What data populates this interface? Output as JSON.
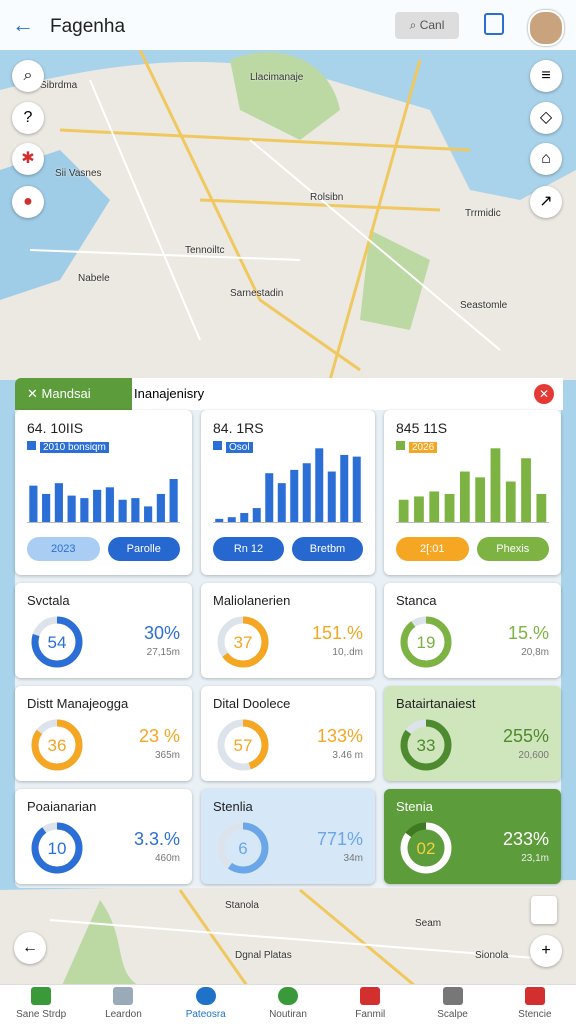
{
  "header": {
    "title": "Fagenha",
    "search": "Canl"
  },
  "map_labels": [
    "Llacimanaje",
    "Sibrdma",
    "Sii Vasnes",
    "Rolsibn",
    "Trrmidic",
    "Tennoiltc",
    "Nabele",
    "Sarnestadin",
    "Seastomle",
    "Stanola",
    "Seam",
    "Dgnal Platas",
    "Sionola"
  ],
  "tabs": [
    "Mandsai",
    "Inanajenisry"
  ],
  "bar_cards": [
    {
      "title": "64. 10IIS",
      "legend": "2010 bonsiqm",
      "color": "#2b6fd6",
      "values": [
        45,
        35,
        48,
        33,
        30,
        40,
        43,
        28,
        30,
        20,
        35,
        53
      ],
      "buttons": [
        "2023",
        "Parolle"
      ],
      "button_colors": [
        "#a9cdf3",
        "#2667d0"
      ]
    },
    {
      "title": "84. 1RS",
      "legend": "Osol",
      "color": "#2b6fd6",
      "values": [
        5,
        7,
        12,
        18,
        60,
        48,
        64,
        72,
        90,
        62,
        82,
        80
      ],
      "buttons": [
        "Rn 12",
        "Bretbm"
      ],
      "button_colors": [
        "#2667d0",
        "#2667d0"
      ]
    },
    {
      "title": "845 11S",
      "legend": "2026",
      "color": "#7cb342",
      "values": [
        28,
        32,
        38,
        35,
        62,
        55,
        90,
        50,
        78,
        35
      ],
      "buttons": [
        "2[:01",
        "Phexis"
      ],
      "button_colors": [
        "#f5a623",
        "#7cb342"
      ]
    }
  ],
  "donut_cards": [
    {
      "title": "Svctala",
      "center": "54",
      "percent": "30%",
      "sub": "27,15m",
      "ring": 80,
      "color": "#2b6fd6"
    },
    {
      "title": "Maliolanerien",
      "center": "37",
      "percent": "151.%",
      "sub": "10,.dm",
      "ring": 65,
      "color": "#f5a623"
    },
    {
      "title": "Stanca",
      "center": "19",
      "percent": "15.%",
      "sub": "20,8m",
      "ring": 90,
      "color": "#7cb342"
    },
    {
      "title": "Distt Manajeogga",
      "center": "36",
      "percent": "23 %",
      "sub": "365m",
      "ring": 85,
      "color": "#f5a623"
    },
    {
      "title": "Dital Doolece",
      "center": "57",
      "percent": "133%",
      "sub": "3.46 m",
      "ring": 45,
      "color": "#f5a623"
    },
    {
      "title": "Batairtanaiest",
      "center": "33",
      "percent": "255%",
      "sub": "20,600",
      "ring": 85,
      "color": "#4e8a2e"
    },
    {
      "title": "Poaianarian",
      "center": "10",
      "percent": "3.3.%",
      "sub": "460m",
      "ring": 90,
      "color": "#2b6fd6"
    },
    {
      "title": "Stenlia",
      "center": "6",
      "percent": "771%",
      "sub": "34m",
      "ring": 60,
      "color": "#6aa6e8"
    },
    {
      "title": "Stenia",
      "center": "02",
      "percent": "233%",
      "sub": "23,1m",
      "ring": 85,
      "color": "#ffffff"
    }
  ],
  "nav": [
    "Sane Strdp",
    "Leardon",
    "Pateosra",
    "Noutiran",
    "Fanmil",
    "Scalpe",
    "Stencie"
  ]
}
